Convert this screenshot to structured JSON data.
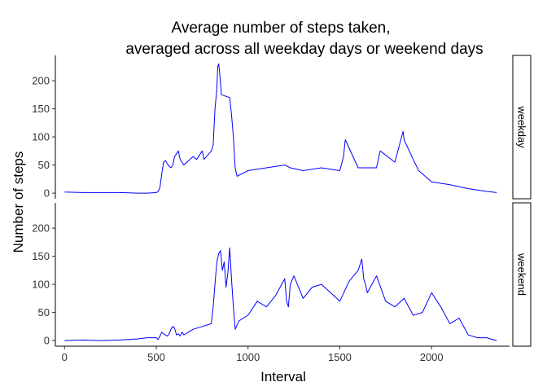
{
  "chart_data": {
    "type": "line",
    "title_lines": [
      "Average number of steps taken,",
      "averaged across all weekday days or weekend days"
    ],
    "xlabel": "Interval",
    "ylabel": "Number of steps",
    "xlim": [
      -50,
      2425
    ],
    "ylim": [
      -10,
      245
    ],
    "x_ticks": [
      0,
      500,
      1000,
      1500,
      2000
    ],
    "y_ticks": [
      0,
      50,
      100,
      150,
      200
    ],
    "grid": false,
    "line_color": "#0000ff",
    "panels": [
      {
        "name": "weekday",
        "strip_label": "weekday",
        "x": [
          0,
          100,
          200,
          300,
          400,
          450,
          500,
          510,
          520,
          530,
          540,
          550,
          560,
          570,
          580,
          590,
          600,
          610,
          620,
          630,
          640,
          650,
          700,
          720,
          740,
          750,
          760,
          800,
          810,
          820,
          830,
          835,
          840,
          845,
          850,
          855,
          900,
          910,
          920,
          930,
          940,
          1000,
          1100,
          1200,
          1230,
          1300,
          1400,
          1500,
          1520,
          1530,
          1600,
          1700,
          1720,
          1800,
          1845,
          1850,
          1900,
          1930,
          2000,
          2100,
          2200,
          2300,
          2355
        ],
        "values": [
          2,
          1,
          1,
          1,
          0,
          0,
          1,
          3,
          10,
          35,
          55,
          58,
          52,
          48,
          45,
          50,
          65,
          70,
          75,
          60,
          55,
          50,
          65,
          60,
          70,
          75,
          60,
          75,
          85,
          150,
          185,
          225,
          230,
          215,
          195,
          175,
          170,
          140,
          100,
          45,
          30,
          40,
          45,
          50,
          45,
          40,
          45,
          40,
          65,
          95,
          45,
          45,
          75,
          55,
          110,
          95,
          60,
          40,
          20,
          15,
          8,
          3,
          1
        ]
      },
      {
        "name": "weekend",
        "strip_label": "weekend",
        "x": [
          0,
          100,
          200,
          300,
          350,
          400,
          450,
          500,
          510,
          520,
          530,
          540,
          550,
          560,
          570,
          580,
          590,
          600,
          610,
          620,
          630,
          640,
          650,
          700,
          750,
          800,
          810,
          820,
          830,
          840,
          850,
          860,
          870,
          880,
          890,
          900,
          910,
          920,
          930,
          950,
          1000,
          1050,
          1100,
          1150,
          1200,
          1210,
          1220,
          1230,
          1250,
          1300,
          1350,
          1400,
          1450,
          1500,
          1550,
          1600,
          1620,
          1630,
          1640,
          1650,
          1700,
          1750,
          1800,
          1850,
          1900,
          1950,
          2000,
          2050,
          2100,
          2150,
          2200,
          2250,
          2300,
          2355
        ],
        "values": [
          0,
          1,
          0,
          1,
          2,
          3,
          5,
          5,
          2,
          8,
          15,
          12,
          10,
          8,
          12,
          20,
          25,
          22,
          10,
          12,
          8,
          15,
          10,
          20,
          25,
          30,
          60,
          100,
          140,
          155,
          160,
          125,
          140,
          95,
          120,
          165,
          110,
          60,
          20,
          35,
          45,
          70,
          60,
          80,
          110,
          70,
          60,
          100,
          115,
          75,
          95,
          100,
          85,
          70,
          105,
          125,
          145,
          110,
          100,
          85,
          115,
          70,
          60,
          75,
          45,
          50,
          85,
          60,
          30,
          40,
          10,
          5,
          5,
          0
        ]
      }
    ]
  }
}
